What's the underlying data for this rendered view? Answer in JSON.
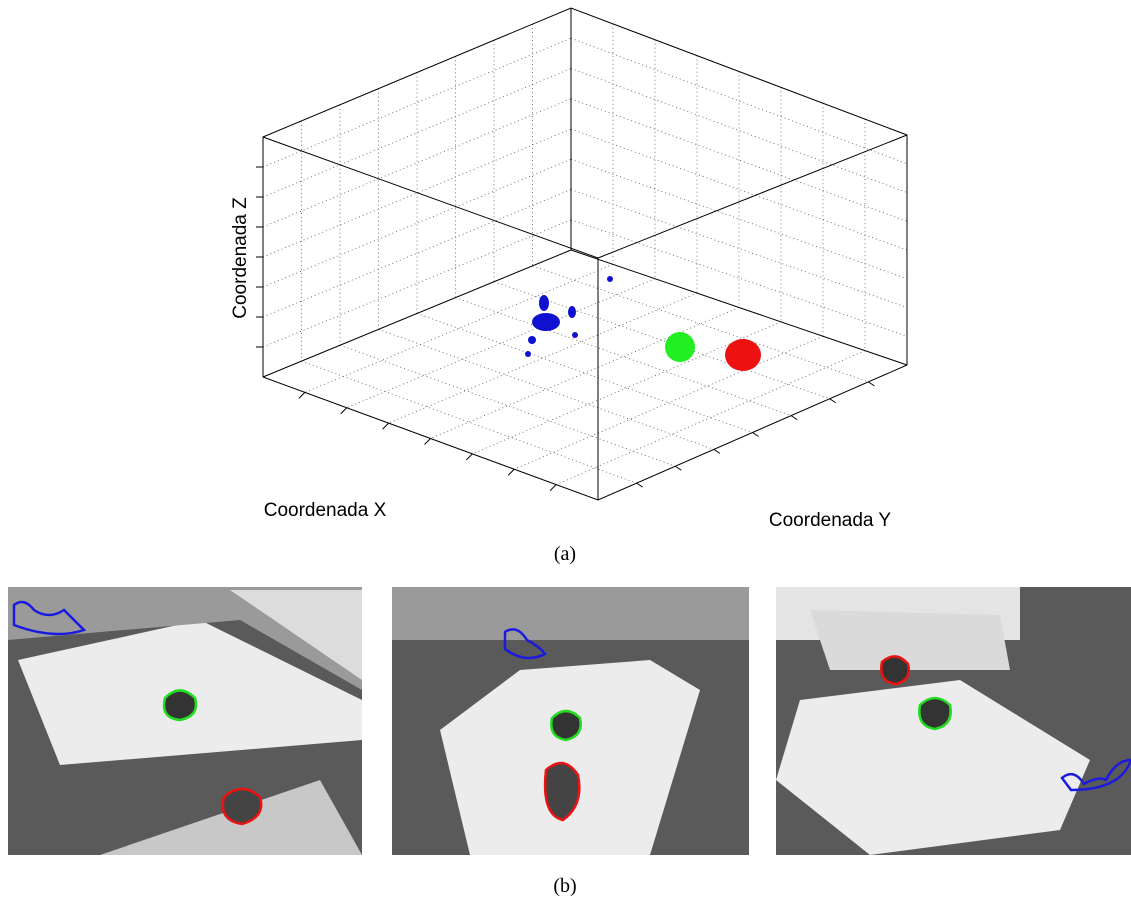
{
  "figure": {
    "axis_labels": {
      "z": "Coordenada Z",
      "x": "Coordenada X",
      "y": "Coordenada Y"
    },
    "captions": {
      "a": "(a)",
      "b": "(b)"
    }
  }
}
